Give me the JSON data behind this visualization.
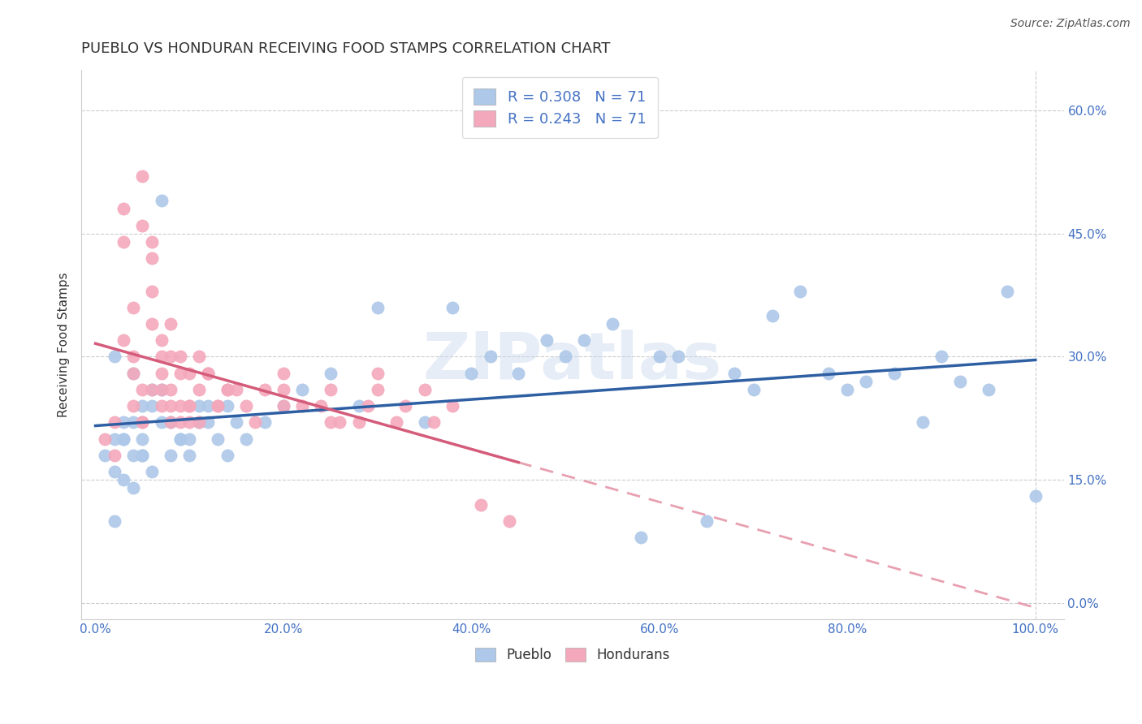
{
  "title": "PUEBLO VS HONDURAN RECEIVING FOOD STAMPS CORRELATION CHART",
  "source": "Source: ZipAtlas.com",
  "ylabel": "Receiving Food Stamps",
  "x_ticks": [
    0.0,
    0.2,
    0.4,
    0.6,
    0.8,
    1.0
  ],
  "x_tick_labels": [
    "0.0%",
    "20.0%",
    "40.0%",
    "60.0%",
    "80.0%",
    "100.0%"
  ],
  "y_ticks": [
    0.0,
    0.15,
    0.3,
    0.45,
    0.6
  ],
  "y_tick_labels": [
    "0.0%",
    "15.0%",
    "30.0%",
    "45.0%",
    "60.0%"
  ],
  "pueblo_color": "#adc8e8",
  "honduran_color": "#f4a8bc",
  "pueblo_line_color": "#2e5fa3",
  "honduran_line_color": "#d45c7a",
  "honduran_line_dashed_color": "#e8a0b0",
  "R_pueblo": 0.308,
  "N_pueblo": 71,
  "R_honduran": 0.243,
  "N_honduran": 71,
  "legend_r_color": "#4472c4",
  "watermark_text": "ZIPatlas",
  "background_color": "#ffffff",
  "grid_color": "#cccccc",
  "title_color": "#333333",
  "tick_label_color": "#4472c4",
  "source_color": "#555555",
  "pueblo_x": [
    0.02,
    0.03,
    0.04,
    0.05,
    0.06,
    0.07,
    0.02,
    0.03,
    0.04,
    0.05,
    0.01,
    0.02,
    0.03,
    0.04,
    0.05,
    0.06,
    0.07,
    0.08,
    0.09,
    0.1,
    0.11,
    0.12,
    0.13,
    0.14,
    0.15,
    0.03,
    0.05,
    0.07,
    0.09,
    0.11,
    0.02,
    0.04,
    0.06,
    0.08,
    0.1,
    0.12,
    0.14,
    0.16,
    0.18,
    0.2,
    0.22,
    0.25,
    0.28,
    0.3,
    0.35,
    0.38,
    0.4,
    0.42,
    0.45,
    0.48,
    0.5,
    0.52,
    0.55,
    0.58,
    0.6,
    0.62,
    0.65,
    0.68,
    0.7,
    0.72,
    0.75,
    0.78,
    0.8,
    0.82,
    0.85,
    0.88,
    0.9,
    0.92,
    0.95,
    0.97,
    1.0
  ],
  "pueblo_y": [
    0.2,
    0.22,
    0.18,
    0.24,
    0.26,
    0.49,
    0.3,
    0.15,
    0.28,
    0.2,
    0.18,
    0.16,
    0.2,
    0.22,
    0.18,
    0.24,
    0.26,
    0.22,
    0.2,
    0.18,
    0.22,
    0.24,
    0.2,
    0.18,
    0.22,
    0.2,
    0.18,
    0.22,
    0.2,
    0.24,
    0.1,
    0.14,
    0.16,
    0.18,
    0.2,
    0.22,
    0.24,
    0.2,
    0.22,
    0.24,
    0.26,
    0.28,
    0.24,
    0.36,
    0.22,
    0.36,
    0.28,
    0.3,
    0.28,
    0.32,
    0.3,
    0.32,
    0.34,
    0.08,
    0.3,
    0.3,
    0.1,
    0.28,
    0.26,
    0.35,
    0.38,
    0.28,
    0.26,
    0.27,
    0.28,
    0.22,
    0.3,
    0.27,
    0.26,
    0.38,
    0.13
  ],
  "honduran_x": [
    0.01,
    0.02,
    0.03,
    0.04,
    0.05,
    0.02,
    0.03,
    0.04,
    0.05,
    0.06,
    0.03,
    0.04,
    0.05,
    0.06,
    0.07,
    0.04,
    0.05,
    0.06,
    0.07,
    0.08,
    0.05,
    0.06,
    0.07,
    0.08,
    0.09,
    0.06,
    0.07,
    0.08,
    0.09,
    0.1,
    0.07,
    0.08,
    0.09,
    0.1,
    0.11,
    0.08,
    0.09,
    0.1,
    0.11,
    0.12,
    0.1,
    0.11,
    0.12,
    0.13,
    0.14,
    0.12,
    0.14,
    0.16,
    0.18,
    0.2,
    0.13,
    0.15,
    0.17,
    0.2,
    0.22,
    0.25,
    0.28,
    0.3,
    0.33,
    0.36,
    0.24,
    0.26,
    0.29,
    0.32,
    0.35,
    0.38,
    0.41,
    0.44,
    0.2,
    0.25,
    0.3
  ],
  "honduran_y": [
    0.2,
    0.18,
    0.48,
    0.28,
    0.52,
    0.22,
    0.32,
    0.24,
    0.46,
    0.42,
    0.44,
    0.3,
    0.22,
    0.34,
    0.28,
    0.36,
    0.22,
    0.44,
    0.3,
    0.24,
    0.26,
    0.38,
    0.32,
    0.22,
    0.3,
    0.26,
    0.24,
    0.34,
    0.22,
    0.28,
    0.26,
    0.3,
    0.24,
    0.22,
    0.3,
    0.26,
    0.28,
    0.24,
    0.22,
    0.28,
    0.24,
    0.26,
    0.28,
    0.24,
    0.26,
    0.28,
    0.26,
    0.24,
    0.26,
    0.26,
    0.24,
    0.26,
    0.22,
    0.28,
    0.24,
    0.26,
    0.22,
    0.28,
    0.24,
    0.22,
    0.24,
    0.22,
    0.24,
    0.22,
    0.26,
    0.24,
    0.12,
    0.1,
    0.24,
    0.22,
    0.26
  ]
}
